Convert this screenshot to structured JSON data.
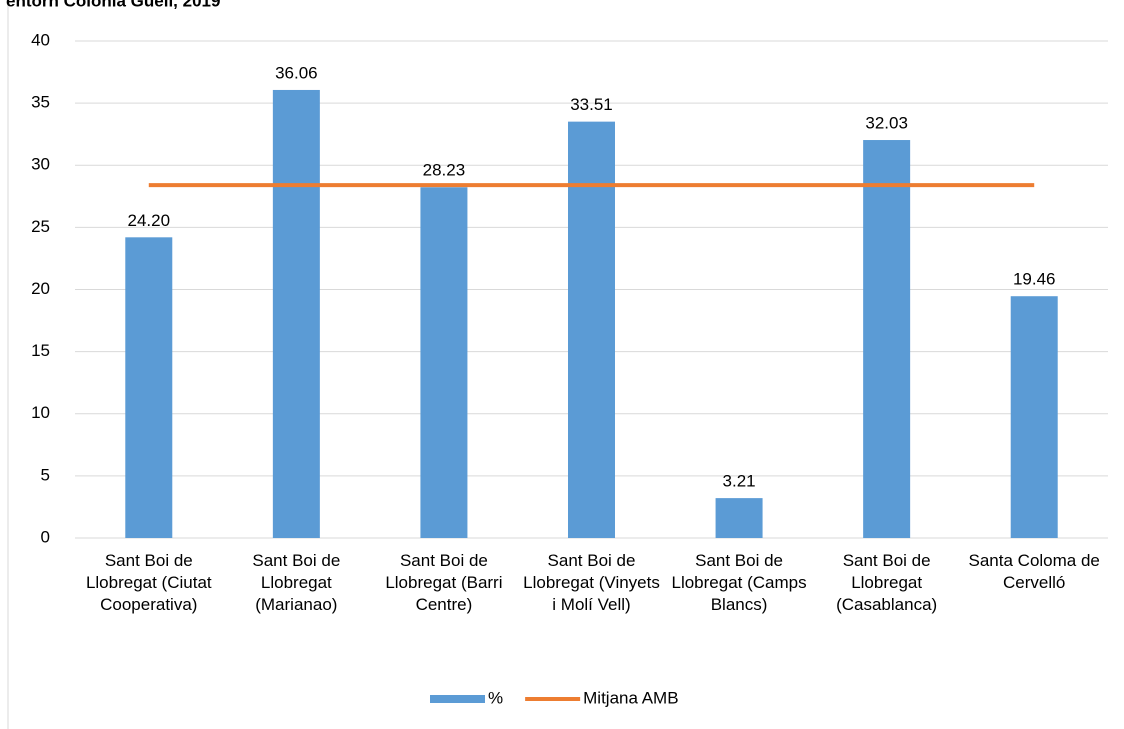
{
  "chart_data": {
    "type": "bar",
    "title": "entorn Colonia Güell, 2019",
    "categories": [
      "Sant Boi de Llobregat (Ciutat Cooperativa)",
      "Sant Boi de Llobregat (Marianao)",
      "Sant Boi de Llobregat (Barri Centre)",
      "Sant Boi de Llobregat (Vinyets i Molí Vell)",
      "Sant Boi de Llobregat (Camps Blancs)",
      "Sant Boi de Llobregat (Casablanca)",
      "Santa Coloma de Cervelló"
    ],
    "series": [
      {
        "name": "%",
        "type": "bar",
        "color": "#5b9bd5",
        "values": [
          24.2,
          36.06,
          28.23,
          33.51,
          3.21,
          32.03,
          19.46
        ],
        "value_labels": [
          "24.20",
          "36.06",
          "28.23",
          "33.51",
          "3.21",
          "32.03",
          "19.46"
        ]
      },
      {
        "name": "Mitjana AMB",
        "type": "line",
        "color": "#ed7d31",
        "values": [
          28.4,
          28.4,
          28.4,
          28.4,
          28.4,
          28.4,
          28.4
        ]
      }
    ],
    "ylim": [
      0,
      40
    ],
    "yticks": [
      0,
      5,
      10,
      15,
      20,
      25,
      30,
      35,
      40
    ],
    "grid": true,
    "legend": "bottom"
  }
}
